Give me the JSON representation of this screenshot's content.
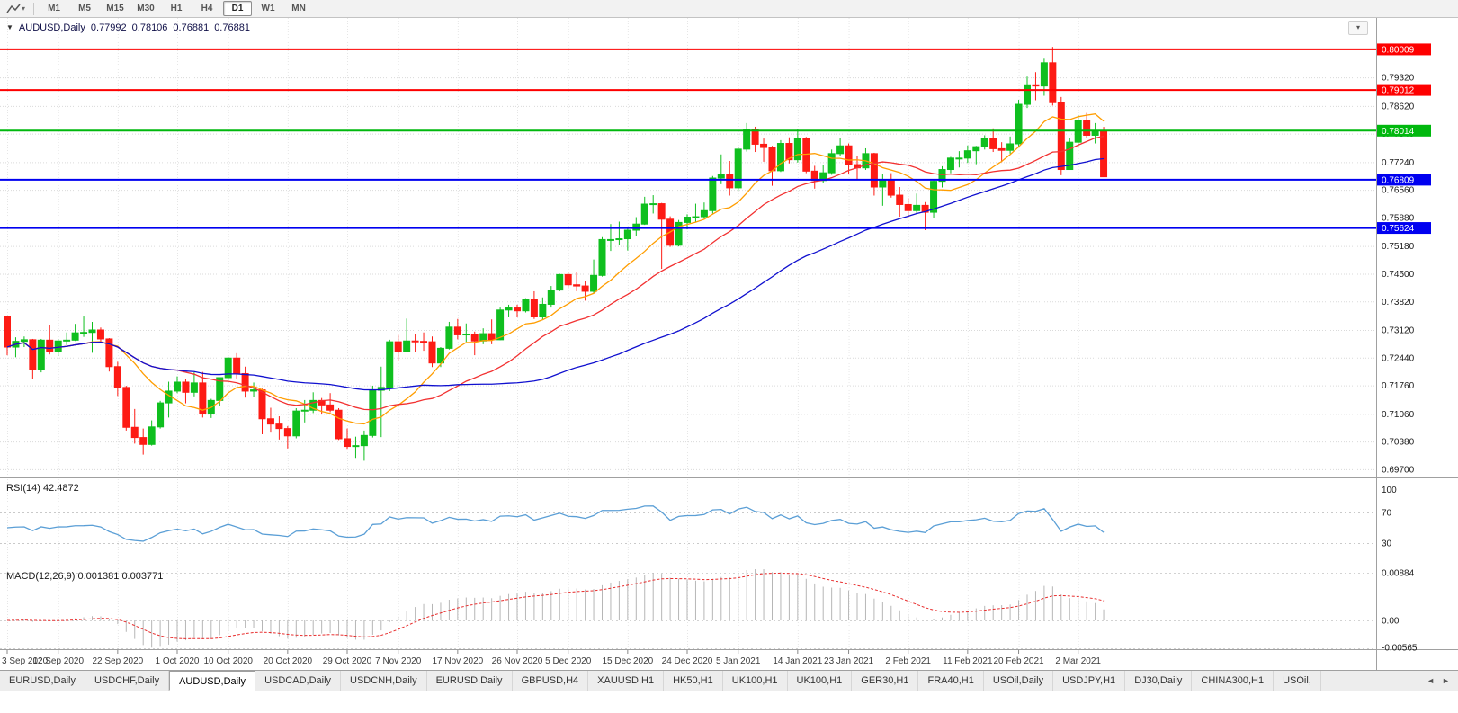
{
  "toolbar": {
    "timeframes": [
      "M1",
      "M5",
      "M15",
      "M30",
      "H1",
      "H4",
      "D1",
      "W1",
      "MN"
    ],
    "active_timeframe": "D1",
    "tool_icon": "chart-line-tool",
    "dropdown_caret": "▾"
  },
  "chart": {
    "header": {
      "collapse_icon": "▼",
      "symbol": "AUDUSD,Daily",
      "open": "0.77992",
      "high": "0.78106",
      "low": "0.76881",
      "close": "0.76881"
    },
    "menu_icon": "▾",
    "rsi_label": "RSI(14)",
    "rsi_value": "42.4872",
    "macd_label": "MACD(12,26,9)",
    "macd_value_1": "0.001381",
    "macd_value_2": "0.003771"
  },
  "chart_data": {
    "type": "candlestick",
    "symbol": "AUDUSD",
    "timeframe": "Daily",
    "price_axis": {
      "grid": [
        0.8002,
        0.7932,
        0.7862,
        0.7794,
        0.7724,
        0.7656,
        0.7588,
        0.7518,
        0.745,
        0.7382,
        0.7312,
        0.7244,
        0.7176,
        0.7106,
        0.7038,
        0.697
      ],
      "decimals": 5
    },
    "hlines": [
      {
        "price": 0.80009,
        "color": "#fe0000",
        "label": "0.80009"
      },
      {
        "price": 0.79012,
        "color": "#fe0000",
        "label": "0.79012"
      },
      {
        "price": 0.78014,
        "color": "#00b80e",
        "label": "0.78014"
      },
      {
        "price": 0.76809,
        "color": "#0000f0",
        "label": "0.76809"
      },
      {
        "price": 0.75624,
        "color": "#0000f0",
        "label": "0.75624"
      }
    ],
    "moving_averages": [
      {
        "name": "ma-fast",
        "period": 10,
        "color": "#ff9d00"
      },
      {
        "name": "ma-mid",
        "period": 21,
        "color": "#f23131"
      },
      {
        "name": "ma-slow",
        "period": 50,
        "color": "#1010cf"
      }
    ],
    "x_labels": [
      {
        "i": 0,
        "t": "3 Sep 2020"
      },
      {
        "i": 6,
        "t": "12 Sep 2020"
      },
      {
        "i": 13,
        "t": "22 Sep 2020"
      },
      {
        "i": 20,
        "t": "1 Oct 2020"
      },
      {
        "i": 26,
        "t": "10 Oct 2020"
      },
      {
        "i": 33,
        "t": "20 Oct 2020"
      },
      {
        "i": 40,
        "t": "29 Oct 2020"
      },
      {
        "i": 46,
        "t": "7 Nov 2020"
      },
      {
        "i": 53,
        "t": "17 Nov 2020"
      },
      {
        "i": 60,
        "t": "26 Nov 2020"
      },
      {
        "i": 66,
        "t": "5 Dec 2020"
      },
      {
        "i": 73,
        "t": "15 Dec 2020"
      },
      {
        "i": 80,
        "t": "24 Dec 2020"
      },
      {
        "i": 86,
        "t": "5 Jan 2021"
      },
      {
        "i": 93,
        "t": "14 Jan 2021"
      },
      {
        "i": 99,
        "t": "23 Jan 2021"
      },
      {
        "i": 106,
        "t": "2 Feb 2021"
      },
      {
        "i": 113,
        "t": "11 Feb 2021"
      },
      {
        "i": 119,
        "t": "20 Feb 2021"
      },
      {
        "i": 126,
        "t": "2 Mar 2021"
      }
    ],
    "ohlc": [
      [
        0.7344,
        0.7345,
        0.725,
        0.727
      ],
      [
        0.727,
        0.7294,
        0.7245,
        0.7284
      ],
      [
        0.7284,
        0.7296,
        0.727,
        0.7288
      ],
      [
        0.7288,
        0.729,
        0.7192,
        0.7215
      ],
      [
        0.7215,
        0.729,
        0.7208,
        0.7287
      ],
      [
        0.7287,
        0.7324,
        0.7252,
        0.7258
      ],
      [
        0.7258,
        0.729,
        0.7248,
        0.7285
      ],
      [
        0.7285,
        0.7306,
        0.7275,
        0.7287
      ],
      [
        0.7287,
        0.7327,
        0.7285,
        0.7305
      ],
      [
        0.7305,
        0.7345,
        0.7295,
        0.7306
      ],
      [
        0.7306,
        0.7332,
        0.7256,
        0.7312
      ],
      [
        0.7312,
        0.7318,
        0.7282,
        0.729
      ],
      [
        0.729,
        0.7292,
        0.721,
        0.7222
      ],
      [
        0.7222,
        0.7234,
        0.715,
        0.7171
      ],
      [
        0.7171,
        0.7175,
        0.7065,
        0.7073
      ],
      [
        0.7073,
        0.7118,
        0.7033,
        0.7048
      ],
      [
        0.7048,
        0.707,
        0.7006,
        0.7031
      ],
      [
        0.7031,
        0.709,
        0.7028,
        0.7074
      ],
      [
        0.7074,
        0.7138,
        0.707,
        0.7133
      ],
      [
        0.7133,
        0.7185,
        0.7097,
        0.7162
      ],
      [
        0.7162,
        0.7198,
        0.7157,
        0.7184
      ],
      [
        0.7184,
        0.7192,
        0.7132,
        0.7159
      ],
      [
        0.7159,
        0.7208,
        0.7149,
        0.7182
      ],
      [
        0.7182,
        0.7209,
        0.7097,
        0.7106
      ],
      [
        0.7106,
        0.7143,
        0.7096,
        0.7139
      ],
      [
        0.7139,
        0.7196,
        0.7125,
        0.7195
      ],
      [
        0.7195,
        0.7246,
        0.719,
        0.7243
      ],
      [
        0.7243,
        0.7255,
        0.7193,
        0.7205
      ],
      [
        0.7205,
        0.7222,
        0.7146,
        0.7162
      ],
      [
        0.7162,
        0.7183,
        0.7148,
        0.7165
      ],
      [
        0.7165,
        0.7168,
        0.7056,
        0.7094
      ],
      [
        0.7094,
        0.7121,
        0.706,
        0.7081
      ],
      [
        0.7081,
        0.71,
        0.7043,
        0.707
      ],
      [
        0.707,
        0.7076,
        0.7021,
        0.7052
      ],
      [
        0.7052,
        0.712,
        0.7046,
        0.7113
      ],
      [
        0.7113,
        0.714,
        0.7085,
        0.7115
      ],
      [
        0.7115,
        0.7159,
        0.7108,
        0.7139
      ],
      [
        0.7139,
        0.7145,
        0.7105,
        0.7128
      ],
      [
        0.7128,
        0.7157,
        0.711,
        0.7115
      ],
      [
        0.7115,
        0.712,
        0.7042,
        0.7045
      ],
      [
        0.7045,
        0.707,
        0.702,
        0.7026
      ],
      [
        0.7026,
        0.705,
        0.6998,
        0.7028
      ],
      [
        0.7028,
        0.7065,
        0.6991,
        0.7053
      ],
      [
        0.7053,
        0.7175,
        0.7048,
        0.7164
      ],
      [
        0.7164,
        0.7222,
        0.7049,
        0.7171
      ],
      [
        0.7171,
        0.7288,
        0.7162,
        0.7283
      ],
      [
        0.7283,
        0.73,
        0.7237,
        0.726
      ],
      [
        0.726,
        0.734,
        0.7258,
        0.7285
      ],
      [
        0.7285,
        0.7302,
        0.7259,
        0.7284
      ],
      [
        0.7284,
        0.7306,
        0.7261,
        0.7283
      ],
      [
        0.7283,
        0.7296,
        0.7221,
        0.7231
      ],
      [
        0.7231,
        0.727,
        0.7221,
        0.7267
      ],
      [
        0.7267,
        0.7332,
        0.7264,
        0.7319
      ],
      [
        0.7319,
        0.7339,
        0.7289,
        0.73
      ],
      [
        0.73,
        0.7328,
        0.7283,
        0.7302
      ],
      [
        0.7302,
        0.7308,
        0.725,
        0.7285
      ],
      [
        0.7285,
        0.7316,
        0.7277,
        0.7303
      ],
      [
        0.7303,
        0.7338,
        0.7277,
        0.7288
      ],
      [
        0.7288,
        0.7367,
        0.7287,
        0.7361
      ],
      [
        0.7361,
        0.7374,
        0.7343,
        0.7366
      ],
      [
        0.7366,
        0.7374,
        0.7343,
        0.7359
      ],
      [
        0.7359,
        0.739,
        0.7355,
        0.7387
      ],
      [
        0.7387,
        0.7407,
        0.7339,
        0.7344
      ],
      [
        0.7344,
        0.7392,
        0.7338,
        0.7375
      ],
      [
        0.7375,
        0.742,
        0.7367,
        0.741
      ],
      [
        0.741,
        0.745,
        0.7407,
        0.7448
      ],
      [
        0.7448,
        0.7454,
        0.7416,
        0.7423
      ],
      [
        0.7423,
        0.7453,
        0.7407,
        0.742
      ],
      [
        0.742,
        0.7432,
        0.7384,
        0.7407
      ],
      [
        0.7407,
        0.7485,
        0.7401,
        0.7446
      ],
      [
        0.7446,
        0.754,
        0.7443,
        0.7534
      ],
      [
        0.7534,
        0.7572,
        0.7506,
        0.7534
      ],
      [
        0.7534,
        0.7578,
        0.752,
        0.7536
      ],
      [
        0.7536,
        0.7564,
        0.7507,
        0.7557
      ],
      [
        0.7557,
        0.7589,
        0.7543,
        0.7572
      ],
      [
        0.7572,
        0.7639,
        0.757,
        0.7621
      ],
      [
        0.7621,
        0.7643,
        0.7598,
        0.7622
      ],
      [
        0.7622,
        0.7624,
        0.7462,
        0.7584
      ],
      [
        0.7584,
        0.7591,
        0.7516,
        0.752
      ],
      [
        0.752,
        0.7582,
        0.7517,
        0.7576
      ],
      [
        0.7576,
        0.7596,
        0.7559,
        0.7589
      ],
      [
        0.7589,
        0.7622,
        0.7577,
        0.759
      ],
      [
        0.759,
        0.7625,
        0.7585,
        0.7605
      ],
      [
        0.7605,
        0.769,
        0.7598,
        0.7685
      ],
      [
        0.7685,
        0.7743,
        0.767,
        0.7694
      ],
      [
        0.7694,
        0.7727,
        0.7642,
        0.7661
      ],
      [
        0.7661,
        0.776,
        0.7654,
        0.7756
      ],
      [
        0.7756,
        0.782,
        0.775,
        0.7804
      ],
      [
        0.7804,
        0.7811,
        0.7749,
        0.7768
      ],
      [
        0.7768,
        0.7782,
        0.7725,
        0.776
      ],
      [
        0.776,
        0.7764,
        0.7666,
        0.7703
      ],
      [
        0.7703,
        0.7778,
        0.77,
        0.777
      ],
      [
        0.777,
        0.7785,
        0.7721,
        0.773
      ],
      [
        0.773,
        0.7805,
        0.7723,
        0.7782
      ],
      [
        0.7782,
        0.7786,
        0.7697,
        0.7702
      ],
      [
        0.7702,
        0.7715,
        0.7659,
        0.7679
      ],
      [
        0.7679,
        0.7716,
        0.7674,
        0.7698
      ],
      [
        0.7698,
        0.7755,
        0.7693,
        0.7745
      ],
      [
        0.7745,
        0.7784,
        0.7739,
        0.7764
      ],
      [
        0.7764,
        0.777,
        0.7695,
        0.7718
      ],
      [
        0.7718,
        0.7738,
        0.7682,
        0.771
      ],
      [
        0.771,
        0.7758,
        0.7705,
        0.7745
      ],
      [
        0.7745,
        0.7747,
        0.7642,
        0.7663
      ],
      [
        0.7663,
        0.7696,
        0.7617,
        0.7681
      ],
      [
        0.7681,
        0.7697,
        0.7637,
        0.7643
      ],
      [
        0.7643,
        0.7663,
        0.759,
        0.762
      ],
      [
        0.762,
        0.7636,
        0.7586,
        0.7605
      ],
      [
        0.7605,
        0.7647,
        0.7597,
        0.7618
      ],
      [
        0.7618,
        0.7626,
        0.7557,
        0.7601
      ],
      [
        0.7601,
        0.7679,
        0.7588,
        0.7677
      ],
      [
        0.7677,
        0.7714,
        0.7662,
        0.7706
      ],
      [
        0.7706,
        0.7737,
        0.7697,
        0.7734
      ],
      [
        0.7734,
        0.7751,
        0.7711,
        0.7734
      ],
      [
        0.7734,
        0.7765,
        0.7722,
        0.7752
      ],
      [
        0.7752,
        0.7764,
        0.7719,
        0.7762
      ],
      [
        0.7762,
        0.779,
        0.7755,
        0.7783
      ],
      [
        0.7783,
        0.7807,
        0.7749,
        0.7757
      ],
      [
        0.7757,
        0.7773,
        0.7724,
        0.7753
      ],
      [
        0.7753,
        0.7787,
        0.7745,
        0.7769
      ],
      [
        0.7769,
        0.7877,
        0.7762,
        0.7866
      ],
      [
        0.7866,
        0.7934,
        0.7857,
        0.7914
      ],
      [
        0.7914,
        0.7945,
        0.7876,
        0.7911
      ],
      [
        0.7911,
        0.7978,
        0.7887,
        0.7968
      ],
      [
        0.7968,
        0.8007,
        0.7863,
        0.787
      ],
      [
        0.787,
        0.7884,
        0.7692,
        0.7706
      ],
      [
        0.7706,
        0.7784,
        0.7705,
        0.7773
      ],
      [
        0.7773,
        0.784,
        0.7762,
        0.7826
      ],
      [
        0.7826,
        0.7845,
        0.7783,
        0.779
      ],
      [
        0.779,
        0.782,
        0.777,
        0.78
      ],
      [
        0.77992,
        0.78106,
        0.76881,
        0.76881
      ]
    ],
    "rsi": {
      "period": 14,
      "levels": [
        100,
        70,
        30
      ],
      "color": "#5b9fd6",
      "current": 42.4872
    },
    "macd": {
      "fast": 12,
      "slow": 26,
      "signal": 9,
      "scale_labels": [
        "0.00884",
        "0.00",
        "-0.00565"
      ],
      "hist_color": "#b6b6b6",
      "signal_color": "#e82e2e",
      "main_current": 0.001381,
      "signal_current": 0.003771
    },
    "colors": {
      "bull": "#0fbf1f",
      "bear": "#fd1b14",
      "grid": "#dadada",
      "background": "#ffffff",
      "separator": "#a0a0a0"
    }
  },
  "tabs": {
    "items": [
      "EURUSD,Daily",
      "USDCHF,Daily",
      "AUDUSD,Daily",
      "USDCAD,Daily",
      "USDCNH,Daily",
      "EURUSD,Daily",
      "GBPUSD,H4",
      "XAUUSD,H1",
      "HK50,H1",
      "UK100,H1",
      "UK100,H1",
      "GER30,H1",
      "FRA40,H1",
      "USOil,Daily",
      "USDJPY,H1",
      "DJ30,Daily",
      "CHINA300,H1",
      "USOil,"
    ],
    "active_index": 2,
    "scroll_left": "◄",
    "scroll_right": "►"
  }
}
